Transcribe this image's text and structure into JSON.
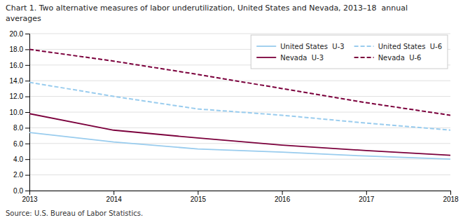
{
  "chart_data": {
    "type": "line",
    "title": "Chart 1. Two alternative measures of labor underutilization, United States and Nevada, 2013–18  annual",
    "subtitle": "averages",
    "annotations": [
      "Source: U.S. Bureau of Labor Statistics."
    ],
    "x": [
      2013,
      2014,
      2015,
      2016,
      2017,
      2018
    ],
    "series": [
      {
        "name": "United States  U-3",
        "color": "#99ccee",
        "line_style": "solid",
        "values": [
          7.4,
          6.2,
          5.3,
          4.9,
          4.4,
          4.0
        ]
      },
      {
        "name": "United States  U-6",
        "color": "#99ccee",
        "line_style": "dashed",
        "values": [
          13.8,
          12.0,
          10.4,
          9.6,
          8.6,
          7.7
        ]
      },
      {
        "name": "Nevada  U-3",
        "color": "#7b003c",
        "line_style": "solid",
        "values": [
          9.8,
          7.7,
          6.7,
          5.8,
          5.1,
          4.5
        ]
      },
      {
        "name": "Nevada  U-6",
        "color": "#7b003c",
        "line_style": "dashed",
        "values": [
          18.0,
          16.5,
          14.8,
          13.0,
          11.2,
          9.6
        ]
      }
    ],
    "xlim": [
      2013,
      2018
    ],
    "xticks": [
      2013,
      2014,
      2015,
      2016,
      2017,
      2018
    ],
    "ylim": [
      0.0,
      20.0
    ],
    "yticks": [
      {
        "value": 0.0,
        "label": "0.0"
      },
      {
        "value": 2.0,
        "label": "2.0"
      },
      {
        "value": 4.0,
        "label": "4.0"
      },
      {
        "value": 6.0,
        "label": "6.0"
      },
      {
        "value": 8.0,
        "label": "8.0"
      },
      {
        "value": 10.0,
        "label": "10.0"
      },
      {
        "value": 12.0,
        "label": "12.0"
      },
      {
        "value": 14.0,
        "label": "14.0"
      },
      {
        "value": 16.0,
        "label": "16.0"
      },
      {
        "value": 18.0,
        "label": "18.0"
      },
      {
        "value": 20.0,
        "label": "20.0"
      }
    ],
    "grid": true,
    "legend": "top-right"
  }
}
